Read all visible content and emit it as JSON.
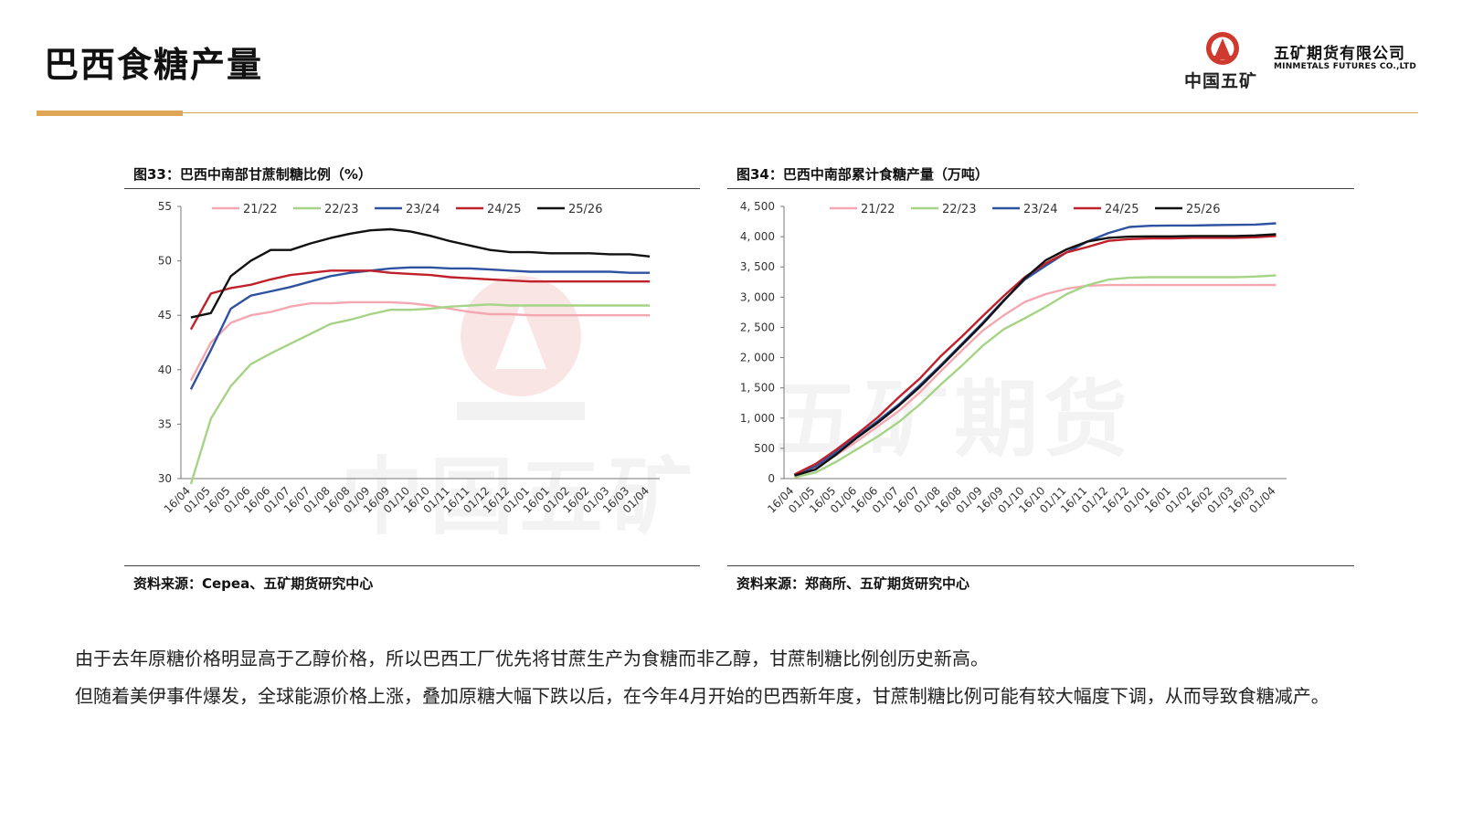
{
  "page": {
    "title": "巴西食糖产量",
    "logo": {
      "cn_sub": "中国五矿",
      "cn_main": "五矿期货有限公司",
      "en": "MINMETALS FUTURES CO.,LTD"
    },
    "watermark_cn": "中国五矿",
    "watermark_cn2": "五矿期货",
    "paragraphs": [
      "由于去年原糖价格明显高于乙醇价格，所以巴西工厂优先将甘蔗生产为食糖而非乙醇，甘蔗制糖比例创历史新高。",
      "但随着美伊事件爆发，全球能源价格上涨，叠加原糖大幅下跌以后，在今年4月开始的巴西新年度，甘蔗制糖比例可能有较大幅度下调，从而导致食糖减产。"
    ],
    "colors": {
      "accent": "#e0a658",
      "s2122": "#f4a7b1",
      "s2223": "#a6d486",
      "s2324": "#2f52a0",
      "s2425": "#c0202a",
      "s2526": "#111111"
    }
  },
  "chart_data": [
    {
      "type": "line",
      "title": "图33：巴西中南部甘蔗制糖比例（%）",
      "source": "资料来源：Cepea、五矿期货研究中心",
      "categories": [
        "16/04",
        "01/05",
        "16/05",
        "01/06",
        "16/06",
        "01/07",
        "16/07",
        "01/08",
        "16/08",
        "01/09",
        "16/09",
        "01/10",
        "16/10",
        "01/11",
        "16/11",
        "01/12",
        "16/12",
        "01/01",
        "16/01",
        "01/02",
        "16/02",
        "01/03",
        "16/03",
        "01/04"
      ],
      "ylim": [
        30,
        55
      ],
      "yticks": [
        30,
        35,
        40,
        45,
        50,
        55
      ],
      "ytick_labels": [
        "30",
        "35",
        "40",
        "45",
        "50",
        "55"
      ],
      "legend": "top",
      "series": [
        {
          "name": "21/22",
          "color": "#f4a7b1",
          "values": [
            39,
            42.5,
            44.3,
            45,
            45.3,
            45.8,
            46.1,
            46.1,
            46.2,
            46.2,
            46.2,
            46.1,
            45.9,
            45.6,
            45.3,
            45.1,
            45.1,
            45,
            45,
            45,
            45,
            45,
            45,
            45
          ]
        },
        {
          "name": "22/23",
          "color": "#a6d486",
          "values": [
            29.5,
            35.5,
            38.5,
            40.5,
            41.5,
            42.4,
            43.3,
            44.2,
            44.6,
            45.1,
            45.5,
            45.5,
            45.6,
            45.8,
            45.9,
            46,
            45.9,
            45.9,
            45.9,
            45.9,
            45.9,
            45.9,
            45.9,
            45.9
          ]
        },
        {
          "name": "23/24",
          "color": "#2f52a0",
          "values": [
            38.2,
            41.8,
            45.6,
            46.8,
            47.2,
            47.6,
            48.1,
            48.6,
            48.9,
            49.1,
            49.3,
            49.4,
            49.4,
            49.3,
            49.3,
            49.2,
            49.1,
            49,
            49,
            49,
            49,
            49,
            48.9,
            48.9
          ]
        },
        {
          "name": "24/25",
          "color": "#c0202a",
          "values": [
            43.7,
            47,
            47.5,
            47.8,
            48.3,
            48.7,
            48.9,
            49.1,
            49.1,
            49.1,
            48.9,
            48.8,
            48.7,
            48.5,
            48.4,
            48.3,
            48.2,
            48.1,
            48.1,
            48.1,
            48.1,
            48.1,
            48.1,
            48.1
          ]
        },
        {
          "name": "25/26",
          "color": "#111111",
          "values": [
            44.8,
            45.2,
            48.6,
            50,
            51,
            51,
            51.6,
            52.1,
            52.5,
            52.8,
            52.9,
            52.7,
            52.3,
            51.8,
            51.4,
            51,
            50.8,
            50.8,
            50.7,
            50.7,
            50.7,
            50.6,
            50.6,
            50.4
          ]
        }
      ]
    },
    {
      "type": "line",
      "title": "图34：巴西中南部累计食糖产量（万吨）",
      "source": "资料来源：郑商所、五矿期货研究中心",
      "categories": [
        "16/04",
        "01/05",
        "16/05",
        "01/06",
        "16/06",
        "01/07",
        "16/07",
        "01/08",
        "16/08",
        "01/09",
        "16/09",
        "01/10",
        "16/10",
        "01/11",
        "16/11",
        "01/12",
        "16/12",
        "01/01",
        "16/01",
        "01/02",
        "16/02",
        "01/03",
        "16/03",
        "01/04"
      ],
      "ylim": [
        0,
        4500
      ],
      "yticks": [
        0,
        500,
        1000,
        1500,
        2000,
        2500,
        3000,
        3500,
        4000,
        4500
      ],
      "ytick_labels": [
        "0",
        "500",
        "1, 000",
        "1, 500",
        "2, 000",
        "2, 500",
        "3, 000",
        "3, 500",
        "4, 000",
        "4, 500"
      ],
      "legend": "top",
      "series": [
        {
          "name": "21/22",
          "color": "#f4a7b1",
          "values": [
            40,
            180,
            390,
            620,
            870,
            1120,
            1430,
            1780,
            2120,
            2450,
            2700,
            2920,
            3050,
            3140,
            3190,
            3200,
            3200,
            3200,
            3200,
            3200,
            3200,
            3200,
            3200,
            3200
          ]
        },
        {
          "name": "22/23",
          "color": "#a6d486",
          "values": [
            20,
            100,
            280,
            490,
            700,
            940,
            1230,
            1560,
            1870,
            2200,
            2470,
            2650,
            2840,
            3050,
            3200,
            3290,
            3320,
            3330,
            3330,
            3330,
            3330,
            3330,
            3340,
            3360
          ]
        },
        {
          "name": "23/24",
          "color": "#2f52a0",
          "values": [
            60,
            200,
            440,
            700,
            960,
            1230,
            1550,
            1880,
            2230,
            2580,
            2950,
            3290,
            3520,
            3740,
            3920,
            4060,
            4160,
            4180,
            4185,
            4185,
            4190,
            4195,
            4200,
            4220
          ]
        },
        {
          "name": "24/25",
          "color": "#c0202a",
          "values": [
            70,
            240,
            480,
            740,
            1020,
            1350,
            1660,
            2030,
            2350,
            2690,
            3020,
            3330,
            3560,
            3740,
            3830,
            3930,
            3960,
            3970,
            3970,
            3980,
            3980,
            3980,
            3990,
            4010
          ]
        },
        {
          "name": "25/26",
          "color": "#111111",
          "values": [
            50,
            150,
            400,
            680,
            930,
            1210,
            1520,
            1860,
            2210,
            2560,
            2940,
            3310,
            3610,
            3790,
            3920,
            3980,
            4000,
            4005,
            4005,
            4010,
            4010,
            4010,
            4020,
            4040
          ]
        }
      ]
    }
  ]
}
